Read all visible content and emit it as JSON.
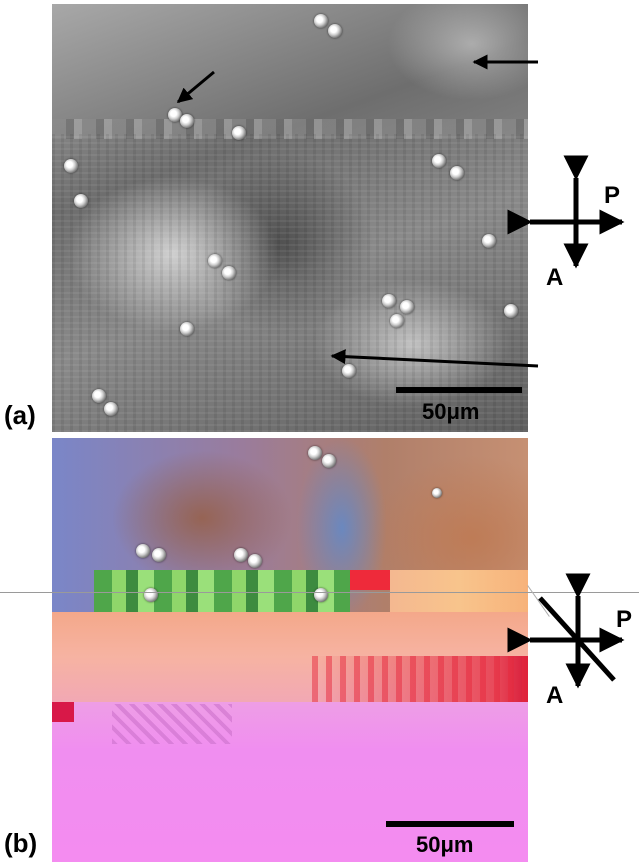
{
  "panels": [
    {
      "label": "(a)",
      "scale_label": "50μm",
      "polarizer_label": "P",
      "analyzer_label": "A"
    },
    {
      "label": "(b)",
      "scale_label": "50μm",
      "polarizer_label": "P",
      "analyzer_label": "A"
    }
  ]
}
